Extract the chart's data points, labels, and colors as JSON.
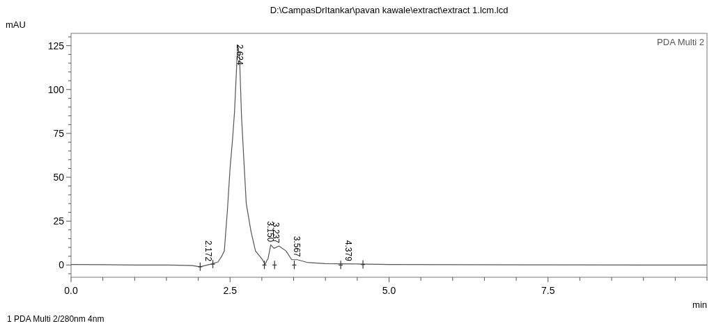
{
  "chart_data": {
    "type": "line",
    "title": "D:\\CampasDrItankar\\pavan kawale\\extract\\extract 1.lcm.lcd",
    "xlabel": "min",
    "ylabel": "mAU",
    "xlim": [
      0,
      10
    ],
    "ylim": [
      -7,
      132
    ],
    "xticks": [
      {
        "value": 0,
        "label": "0.0"
      },
      {
        "value": 0.5,
        "label": null
      },
      {
        "value": 1,
        "label": null
      },
      {
        "value": 1.5,
        "label": null
      },
      {
        "value": 2,
        "label": null
      },
      {
        "value": 2.5,
        "label": "2.5"
      },
      {
        "value": 3,
        "label": null
      },
      {
        "value": 3.5,
        "label": null
      },
      {
        "value": 4,
        "label": null
      },
      {
        "value": 4.5,
        "label": null
      },
      {
        "value": 5,
        "label": "5.0"
      },
      {
        "value": 5.5,
        "label": null
      },
      {
        "value": 6,
        "label": null
      },
      {
        "value": 6.5,
        "label": null
      },
      {
        "value": 7,
        "label": null
      },
      {
        "value": 7.5,
        "label": "7.5"
      },
      {
        "value": 8,
        "label": null
      },
      {
        "value": 8.5,
        "label": null
      },
      {
        "value": 9,
        "label": null
      },
      {
        "value": 9.5,
        "label": null
      },
      {
        "value": 10,
        "label": null
      }
    ],
    "yticks": [
      {
        "value": -5,
        "label": null
      },
      0,
      {
        "value": 5,
        "label": null
      },
      {
        "value": 10,
        "label": null
      },
      {
        "value": 15,
        "label": null
      },
      {
        "value": 20,
        "label": null
      },
      25,
      {
        "value": 30,
        "label": null
      },
      {
        "value": 35,
        "label": null
      },
      {
        "value": 40,
        "label": null
      },
      {
        "value": 45,
        "label": null
      },
      50,
      {
        "value": 55,
        "label": null
      },
      {
        "value": 60,
        "label": null
      },
      {
        "value": 65,
        "label": null
      },
      {
        "value": 70,
        "label": null
      },
      75,
      {
        "value": 80,
        "label": null
      },
      {
        "value": 85,
        "label": null
      },
      {
        "value": 90,
        "label": null
      },
      {
        "value": 95,
        "label": null
      },
      100,
      {
        "value": 105,
        "label": null
      },
      {
        "value": 110,
        "label": null
      },
      {
        "value": 115,
        "label": null
      },
      {
        "value": 120,
        "label": null
      },
      125,
      {
        "value": 130,
        "label": null
      }
    ],
    "grid": false,
    "legend": "top right",
    "series": [
      {
        "name": "PDA Multi 2",
        "color": "#555555",
        "marker": "none",
        "x": [
          0,
          0.5,
          1,
          1.5,
          1.9,
          2.03,
          2.2,
          2.31,
          2.37,
          2.41,
          2.46,
          2.5,
          2.54,
          2.57,
          2.61,
          2.624,
          2.65,
          2.68,
          2.72,
          2.755,
          2.83,
          2.9,
          3.01,
          3.05,
          3.1,
          3.14,
          3.19,
          3.27,
          3.38,
          3.47,
          3.56,
          3.71,
          4.0,
          4.5,
          5.0,
          6.0,
          7.5,
          9.0,
          10.0
        ],
        "values": [
          0.3,
          0.2,
          0,
          0,
          -0.3,
          -1,
          0.5,
          1.7,
          5,
          8,
          32,
          55,
          72,
          87,
          118,
          125,
          118,
          85,
          58,
          35,
          19,
          8,
          3,
          0.4,
          4,
          11.5,
          9.5,
          10.8,
          8,
          3,
          3,
          1.5,
          0.8,
          0.6,
          0.3,
          0.2,
          0.1,
          0,
          0
        ]
      },
      {
        "type": "scatter",
        "color": "#333333",
        "marker": "cross",
        "x": [
          2.03,
          2.23,
          3.04,
          3.2,
          3.51,
          4.24,
          4.59
        ],
        "values": [
          -1,
          0.5,
          0,
          0,
          0,
          0,
          0.3
        ]
      }
    ],
    "annotations": [
      {
        "text": "2.172",
        "x": 2.172,
        "y": 0.5
      },
      {
        "text": "2.624",
        "x": 2.624,
        "y": 125
      },
      {
        "text": "3.150",
        "x": 3.15,
        "y": 11.5
      },
      {
        "text": "3.237",
        "x": 3.237,
        "y": 10.8
      },
      {
        "text": "3.567",
        "x": 3.567,
        "y": 3
      },
      {
        "text": "4.379",
        "x": 4.379,
        "y": 0.6
      },
      "1   PDA Multi 2/280nm 4nm"
    ]
  }
}
